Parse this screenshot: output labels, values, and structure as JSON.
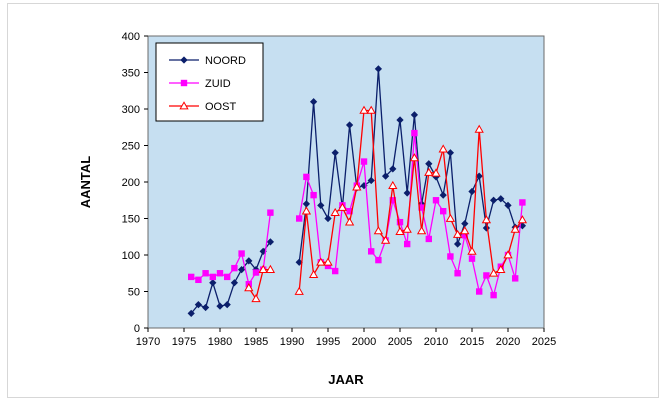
{
  "chart_data": {
    "type": "line",
    "title": "",
    "xlabel": "JAAR",
    "ylabel": "AANTAL",
    "xlim": [
      1970,
      2025
    ],
    "ylim": [
      0,
      400
    ],
    "xticks": [
      1970,
      1975,
      1980,
      1985,
      1990,
      1995,
      2000,
      2005,
      2010,
      2015,
      2020,
      2025
    ],
    "yticks": [
      0,
      50,
      100,
      150,
      200,
      250,
      300,
      350,
      400
    ],
    "plot_background": "#c6dff1",
    "legend_position": "top-left",
    "series": [
      {
        "name": "NOORD",
        "color": "#0b1f6b",
        "marker": "diamond",
        "points": [
          [
            1976,
            20
          ],
          [
            1977,
            32
          ],
          [
            1978,
            28
          ],
          [
            1979,
            62
          ],
          [
            1980,
            30
          ],
          [
            1981,
            32
          ],
          [
            1982,
            62
          ],
          [
            1983,
            80
          ],
          [
            1984,
            92
          ],
          [
            1985,
            80
          ],
          [
            1986,
            105
          ],
          [
            1987,
            118
          ],
          [
            1991,
            90
          ],
          [
            1992,
            170
          ],
          [
            1993,
            310
          ],
          [
            1994,
            168
          ],
          [
            1995,
            150
          ],
          [
            1996,
            240
          ],
          [
            1997,
            165
          ],
          [
            1998,
            278
          ],
          [
            1999,
            192
          ],
          [
            2000,
            195
          ],
          [
            2001,
            202
          ],
          [
            2002,
            355
          ],
          [
            2003,
            208
          ],
          [
            2004,
            218
          ],
          [
            2005,
            285
          ],
          [
            2006,
            185
          ],
          [
            2007,
            292
          ],
          [
            2008,
            170
          ],
          [
            2009,
            225
          ],
          [
            2010,
            207
          ],
          [
            2011,
            182
          ],
          [
            2012,
            240
          ],
          [
            2013,
            115
          ],
          [
            2014,
            143
          ],
          [
            2015,
            187
          ],
          [
            2016,
            208
          ],
          [
            2017,
            137
          ],
          [
            2018,
            175
          ],
          [
            2019,
            177
          ],
          [
            2020,
            168
          ],
          [
            2021,
            138
          ],
          [
            2022,
            140
          ]
        ]
      },
      {
        "name": "ZUID",
        "color": "#ff00ff",
        "marker": "square",
        "points": [
          [
            1976,
            70
          ],
          [
            1977,
            66
          ],
          [
            1978,
            75
          ],
          [
            1979,
            70
          ],
          [
            1980,
            75
          ],
          [
            1981,
            70
          ],
          [
            1982,
            82
          ],
          [
            1983,
            102
          ],
          [
            1984,
            60
          ],
          [
            1985,
            76
          ],
          [
            1986,
            80
          ],
          [
            1987,
            158
          ],
          [
            1991,
            150
          ],
          [
            1992,
            207
          ],
          [
            1993,
            182
          ],
          [
            1994,
            90
          ],
          [
            1995,
            85
          ],
          [
            1996,
            78
          ],
          [
            1997,
            168
          ],
          [
            1998,
            160
          ],
          [
            1999,
            195
          ],
          [
            2000,
            228
          ],
          [
            2001,
            105
          ],
          [
            2002,
            93
          ],
          [
            2003,
            120
          ],
          [
            2004,
            175
          ],
          [
            2005,
            145
          ],
          [
            2006,
            115
          ],
          [
            2007,
            267
          ],
          [
            2008,
            165
          ],
          [
            2009,
            122
          ],
          [
            2010,
            175
          ],
          [
            2011,
            160
          ],
          [
            2012,
            98
          ],
          [
            2013,
            75
          ],
          [
            2014,
            127
          ],
          [
            2015,
            95
          ],
          [
            2016,
            50
          ],
          [
            2017,
            72
          ],
          [
            2018,
            45
          ],
          [
            2019,
            84
          ],
          [
            2020,
            100
          ],
          [
            2021,
            68
          ],
          [
            2022,
            172
          ]
        ]
      },
      {
        "name": "OOST",
        "color": "#ff0000",
        "marker": "triangle",
        "points": [
          [
            1984,
            55
          ],
          [
            1985,
            40
          ],
          [
            1986,
            80
          ],
          [
            1987,
            80
          ],
          [
            1991,
            50
          ],
          [
            1992,
            160
          ],
          [
            1993,
            73
          ],
          [
            1994,
            90
          ],
          [
            1995,
            90
          ],
          [
            1996,
            158
          ],
          [
            1997,
            165
          ],
          [
            1998,
            145
          ],
          [
            1999,
            193
          ],
          [
            2000,
            298
          ],
          [
            2001,
            298
          ],
          [
            2002,
            133
          ],
          [
            2003,
            120
          ],
          [
            2004,
            195
          ],
          [
            2005,
            132
          ],
          [
            2006,
            135
          ],
          [
            2007,
            233
          ],
          [
            2008,
            133
          ],
          [
            2009,
            213
          ],
          [
            2010,
            212
          ],
          [
            2011,
            245
          ],
          [
            2012,
            150
          ],
          [
            2013,
            128
          ],
          [
            2014,
            133
          ],
          [
            2015,
            105
          ],
          [
            2016,
            272
          ],
          [
            2017,
            148
          ],
          [
            2018,
            75
          ],
          [
            2019,
            80
          ],
          [
            2020,
            100
          ],
          [
            2021,
            135
          ],
          [
            2022,
            148
          ]
        ]
      }
    ]
  }
}
